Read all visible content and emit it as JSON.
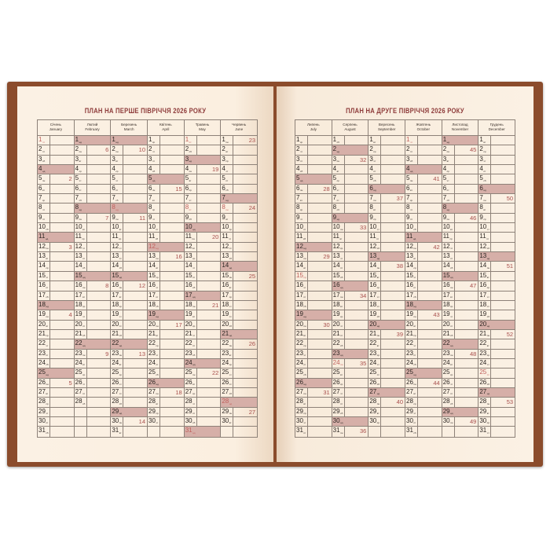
{
  "weekdays": [
    "пн",
    "вт",
    "ср",
    "чт",
    "пт",
    "сб",
    "нд"
  ],
  "shaded_weekday": "нд",
  "colors": {
    "cover": "#8b4c2c",
    "paper": "#fbf0e2",
    "title": "#8e3b3a",
    "weekend_shade": "#d6afa8",
    "holiday_text": "#c0605c",
    "week_number": "#a9504d"
  },
  "pages": [
    {
      "title": "ПЛАН НА ПЕРШЕ ПІВРІЧЧЯ 2026 РОКУ",
      "months": [
        {
          "ua": "Січень",
          "en": "January",
          "days": 31,
          "first_weekday": "чт",
          "holidays": [
            1
          ],
          "week_numbers": {
            "5": 2,
            "12": 3,
            "19": 4,
            "26": 5
          }
        },
        {
          "ua": "Лютий",
          "en": "February",
          "days": 28,
          "first_weekday": "нд",
          "holidays": [],
          "week_numbers": {
            "2": 6,
            "9": 7,
            "16": 8,
            "23": 9
          }
        },
        {
          "ua": "Березень",
          "en": "March",
          "days": 31,
          "first_weekday": "нд",
          "holidays": [
            8
          ],
          "week_numbers": {
            "2": 10,
            "9": 11,
            "16": 12,
            "23": 13,
            "30": 14
          }
        },
        {
          "ua": "Квітень",
          "en": "April",
          "days": 30,
          "first_weekday": "ср",
          "holidays": [
            12
          ],
          "week_numbers": {
            "6": 15,
            "13": 16,
            "20": 17,
            "27": 18
          }
        },
        {
          "ua": "Травень",
          "en": "May",
          "days": 31,
          "first_weekday": "пт",
          "holidays": [
            1,
            8,
            31
          ],
          "week_numbers": {
            "4": 19,
            "11": 20,
            "18": 21,
            "25": 22
          }
        },
        {
          "ua": "Червень",
          "en": "June",
          "days": 30,
          "first_weekday": "пн",
          "holidays": [
            8,
            28
          ],
          "week_numbers": {
            "1": 23,
            "8": 24,
            "15": 25,
            "22": 26,
            "29": 27
          }
        }
      ]
    },
    {
      "title": "ПЛАН НА ДРУГЕ ПІВРІЧЧЯ 2026 РОКУ",
      "months": [
        {
          "ua": "Липень",
          "en": "July",
          "days": 31,
          "first_weekday": "ср",
          "holidays": [
            15
          ],
          "week_numbers": {
            "6": 28,
            "13": 29,
            "20": 30,
            "27": 31
          }
        },
        {
          "ua": "Серпень",
          "en": "August",
          "days": 31,
          "first_weekday": "сб",
          "holidays": [
            24
          ],
          "week_numbers": {
            "3": 32,
            "10": 33,
            "17": 34,
            "24": 35,
            "31": 36
          }
        },
        {
          "ua": "Вересень",
          "en": "September",
          "days": 30,
          "first_weekday": "вт",
          "holidays": [],
          "week_numbers": {
            "7": 37,
            "14": 38,
            "21": 39,
            "28": 40
          }
        },
        {
          "ua": "Жовтень",
          "en": "October",
          "days": 31,
          "first_weekday": "чт",
          "holidays": [
            1
          ],
          "week_numbers": {
            "5": 41,
            "12": 42,
            "19": 43,
            "26": 44
          }
        },
        {
          "ua": "Листопад",
          "en": "November",
          "days": 30,
          "first_weekday": "нд",
          "holidays": [],
          "week_numbers": {
            "2": 45,
            "9": 46,
            "16": 47,
            "23": 48,
            "30": 49
          }
        },
        {
          "ua": "Грудень",
          "en": "December",
          "days": 31,
          "first_weekday": "вт",
          "holidays": [
            25
          ],
          "week_numbers": {
            "7": 50,
            "14": 51,
            "21": 52,
            "28": 53
          }
        }
      ]
    }
  ]
}
